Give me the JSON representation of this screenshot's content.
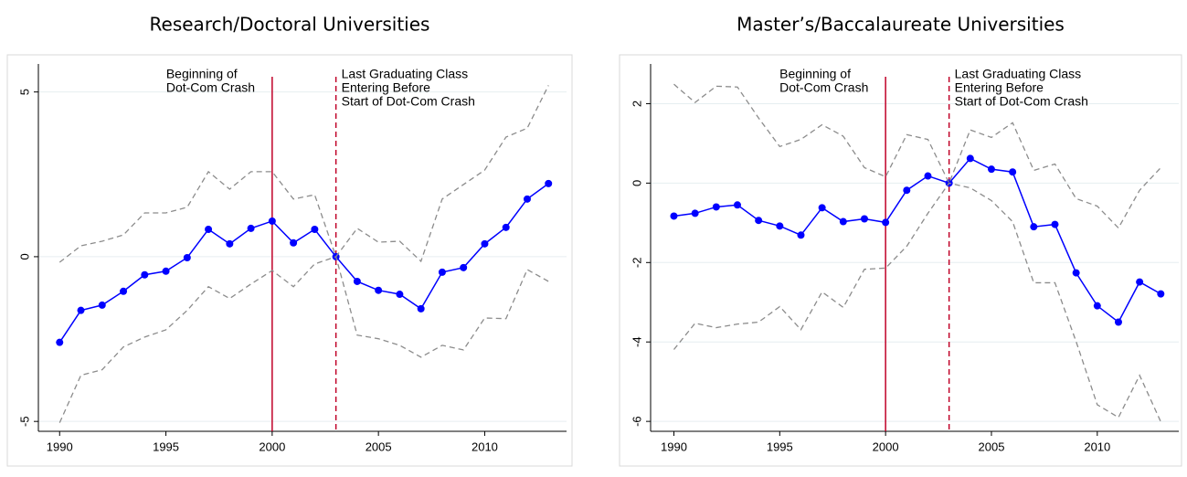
{
  "chart_data": [
    {
      "type": "line",
      "title": "Research/Doctoral Universities",
      "x": [
        1990,
        1991,
        1992,
        1993,
        1994,
        1995,
        1996,
        1997,
        1998,
        1999,
        2000,
        2001,
        2002,
        2003,
        2004,
        2005,
        2006,
        2007,
        2008,
        2009,
        2010,
        2011,
        2012,
        2013
      ],
      "series": [
        {
          "color": "#0000ff",
          "style": "solid",
          "markers": true,
          "values": [
            -2.6,
            -1.63,
            -1.47,
            -1.05,
            -0.55,
            -0.44,
            -0.03,
            0.83,
            0.39,
            0.86,
            1.08,
            0.42,
            0.83,
            0,
            -0.75,
            -1.02,
            -1.14,
            -1.58,
            -0.47,
            -0.33,
            0.39,
            0.89,
            1.75,
            2.22
          ]
        },
        {
          "color": "#8c8c8c",
          "style": "dashed",
          "markers": false,
          "values": [
            -0.17,
            0.33,
            0.47,
            0.66,
            1.33,
            1.33,
            1.5,
            2.58,
            2.05,
            2.58,
            2.58,
            1.75,
            1.88,
            0,
            0.86,
            0.44,
            0.47,
            -0.14,
            1.75,
            2.19,
            2.63,
            3.63,
            3.9,
            5.2
          ]
        },
        {
          "color": "#8c8c8c",
          "style": "dashed",
          "markers": false,
          "values": [
            -5.04,
            -3.6,
            -3.43,
            -2.74,
            -2.44,
            -2.22,
            -1.63,
            -0.91,
            -1.27,
            -0.83,
            -0.42,
            -0.91,
            -0.22,
            0,
            -2.38,
            -2.49,
            -2.69,
            -3.05,
            -2.69,
            -2.83,
            -1.86,
            -1.88,
            -0.39,
            -0.75
          ]
        }
      ],
      "xlim": [
        1989,
        2013.85
      ],
      "xticks": [
        1990,
        1995,
        2000,
        2005,
        2010
      ],
      "ylim": [
        -5.3,
        5.85
      ],
      "yticks": [
        -5,
        0,
        5
      ],
      "grid": true,
      "vlines": [
        {
          "x": 2000,
          "style": "solid",
          "color": "#c00028",
          "label": [
            "Beginning of",
            "Dot-Com Crash"
          ],
          "side": "left"
        },
        {
          "x": 2003,
          "style": "dashed",
          "color": "#c00028",
          "label": [
            "Last Graduating Class",
            "Entering Before",
            "Start of Dot-Com Crash"
          ],
          "side": "right"
        }
      ]
    },
    {
      "type": "line",
      "title": "Master’s/Baccalaureate Universities",
      "x": [
        1990,
        1991,
        1992,
        1993,
        1994,
        1995,
        1996,
        1997,
        1998,
        1999,
        2000,
        2001,
        2002,
        2003,
        2004,
        2005,
        2006,
        2007,
        2008,
        2009,
        2010,
        2011,
        2012,
        2013
      ],
      "series": [
        {
          "color": "#0000ff",
          "style": "solid",
          "markers": true,
          "values": [
            -0.83,
            -0.76,
            -0.6,
            -0.55,
            -0.94,
            -1.08,
            -1.31,
            -0.62,
            -0.97,
            -0.9,
            -0.99,
            -0.18,
            0.18,
            0,
            0.62,
            0.35,
            0.28,
            -1.1,
            -1.04,
            -2.26,
            -3.09,
            -3.5,
            -2.49,
            -2.79
          ]
        },
        {
          "color": "#8c8c8c",
          "style": "dashed",
          "markers": false,
          "values": [
            2.49,
            2.03,
            2.44,
            2.42,
            1.64,
            0.92,
            1.1,
            1.47,
            1.18,
            0.39,
            0.16,
            1.22,
            1.1,
            0,
            1.34,
            1.15,
            1.52,
            0.32,
            0.48,
            -0.39,
            -0.58,
            -1.13,
            -0.18,
            0.39
          ]
        },
        {
          "color": "#8c8c8c",
          "style": "dashed",
          "markers": false,
          "values": [
            -4.19,
            -3.53,
            -3.64,
            -3.55,
            -3.5,
            -3.11,
            -3.69,
            -2.74,
            -3.13,
            -2.17,
            -2.14,
            -1.59,
            -0.76,
            0,
            -0.12,
            -0.44,
            -0.97,
            -2.51,
            -2.51,
            -3.99,
            -5.58,
            -5.9,
            -4.84,
            -6.01
          ]
        }
      ],
      "xlim": [
        1988.9,
        2013.85
      ],
      "xticks": [
        1990,
        1995,
        2000,
        2005,
        2010
      ],
      "ylim": [
        -6.25,
        3.0
      ],
      "yticks": [
        -6,
        -4,
        -2,
        0,
        2
      ],
      "grid": true,
      "vlines": [
        {
          "x": 2000,
          "style": "solid",
          "color": "#c00028",
          "label": [
            "Beginning of",
            "Dot-Com Crash"
          ],
          "side": "left"
        },
        {
          "x": 2003,
          "style": "dashed",
          "color": "#c00028",
          "label": [
            "Last Graduating Class",
            "Entering Before",
            "Start of Dot-Com Crash"
          ],
          "side": "right"
        }
      ]
    }
  ]
}
